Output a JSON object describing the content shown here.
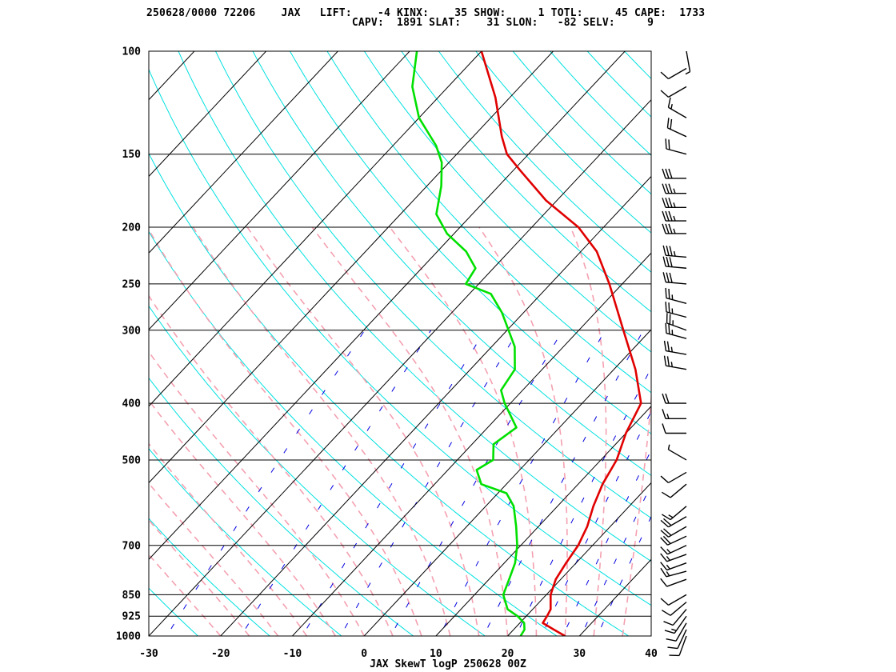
{
  "header": {
    "line1": "250628/0000 72206    JAX   LIFT:    -4 KINX:    35 SHOW:     1 TOTL:     45 CAPE:  1733",
    "line2": "                                CAPV:  1891 SLAT:    31 SLON:   -82 SELV:     9"
  },
  "chart_data": {
    "type": "line",
    "title": "JAX SkewT logP 250628 00Z",
    "xlabel": "",
    "ylabel": "",
    "xlim": [
      -30,
      40
    ],
    "ylim": [
      1000,
      100
    ],
    "y_scale": "log",
    "grid": true,
    "x_ticks": [
      "-30",
      "-20",
      "-10",
      "0",
      "10",
      "20",
      "30",
      "40"
    ],
    "y_ticks": [
      "100",
      "150",
      "200",
      "250",
      "300",
      "400",
      "500",
      "700",
      "850",
      "925",
      "1000"
    ],
    "series": [
      {
        "color": "#e00000",
        "points": [
          [
            1000,
            28
          ],
          [
            975,
            25.6
          ],
          [
            950,
            23.2
          ],
          [
            925,
            22.9
          ],
          [
            900,
            22.5
          ],
          [
            850,
            20.6
          ],
          [
            800,
            19.3
          ],
          [
            750,
            18.6
          ],
          [
            700,
            18
          ],
          [
            650,
            16.8
          ],
          [
            600,
            15
          ],
          [
            550,
            13.4
          ],
          [
            500,
            12.2
          ],
          [
            450,
            10
          ],
          [
            400,
            8.2
          ],
          [
            350,
            3
          ],
          [
            300,
            -3.8
          ],
          [
            250,
            -11.8
          ],
          [
            220,
            -17.8
          ],
          [
            200,
            -23.5
          ],
          [
            180,
            -31.5
          ],
          [
            160,
            -39
          ],
          [
            150,
            -43
          ],
          [
            140,
            -46
          ],
          [
            120,
            -52
          ],
          [
            100,
            -60
          ]
        ]
      },
      {
        "color": "#00e000",
        "points": [
          [
            1000,
            21.8
          ],
          [
            975,
            21.5
          ],
          [
            950,
            20.6
          ],
          [
            925,
            18.8
          ],
          [
            900,
            16.5
          ],
          [
            850,
            14
          ],
          [
            800,
            12.8
          ],
          [
            750,
            11.5
          ],
          [
            700,
            9.5
          ],
          [
            650,
            6.9
          ],
          [
            600,
            3.9
          ],
          [
            570,
            1.2
          ],
          [
            550,
            -3.5
          ],
          [
            520,
            -6
          ],
          [
            500,
            -5
          ],
          [
            470,
            -7
          ],
          [
            440,
            -6
          ],
          [
            400,
            -10.8
          ],
          [
            380,
            -13
          ],
          [
            350,
            -13.8
          ],
          [
            320,
            -16.8
          ],
          [
            300,
            -19.8
          ],
          [
            280,
            -23
          ],
          [
            260,
            -27
          ],
          [
            250,
            -31.8
          ],
          [
            235,
            -32.5
          ],
          [
            220,
            -36
          ],
          [
            205,
            -41
          ],
          [
            190,
            -45
          ],
          [
            170,
            -48
          ],
          [
            155,
            -51
          ],
          [
            145,
            -54
          ],
          [
            130,
            -60
          ],
          [
            115,
            -65
          ],
          [
            100,
            -69
          ]
        ]
      }
    ],
    "wind_barbs": [
      {
        "p": 1000,
        "dir": 200,
        "kt": 10
      },
      {
        "p": 975,
        "dir": 205,
        "kt": 12
      },
      {
        "p": 950,
        "dir": 210,
        "kt": 10
      },
      {
        "p": 925,
        "dir": 215,
        "kt": 15
      },
      {
        "p": 900,
        "dir": 220,
        "kt": 12
      },
      {
        "p": 875,
        "dir": 230,
        "kt": 10
      },
      {
        "p": 850,
        "dir": 240,
        "kt": 10
      },
      {
        "p": 800,
        "dir": 250,
        "kt": 10
      },
      {
        "p": 775,
        "dir": 255,
        "kt": 15
      },
      {
        "p": 750,
        "dir": 250,
        "kt": 15
      },
      {
        "p": 725,
        "dir": 250,
        "kt": 15
      },
      {
        "p": 700,
        "dir": 245,
        "kt": 15
      },
      {
        "p": 675,
        "dir": 245,
        "kt": 20
      },
      {
        "p": 650,
        "dir": 240,
        "kt": 20
      },
      {
        "p": 625,
        "dir": 240,
        "kt": 20
      },
      {
        "p": 600,
        "dir": 230,
        "kt": 15
      },
      {
        "p": 550,
        "dir": 230,
        "kt": 10
      },
      {
        "p": 525,
        "dir": 240,
        "kt": 10
      },
      {
        "p": 500,
        "dir": 300,
        "kt": 5
      },
      {
        "p": 450,
        "dir": 270,
        "kt": 10
      },
      {
        "p": 425,
        "dir": 270,
        "kt": 15
      },
      {
        "p": 400,
        "dir": 270,
        "kt": 20
      },
      {
        "p": 350,
        "dir": 280,
        "kt": 25
      },
      {
        "p": 330,
        "dir": 280,
        "kt": 25
      },
      {
        "p": 310,
        "dir": 285,
        "kt": 25
      },
      {
        "p": 300,
        "dir": 290,
        "kt": 25
      },
      {
        "p": 285,
        "dir": 285,
        "kt": 25
      },
      {
        "p": 270,
        "dir": 285,
        "kt": 25
      },
      {
        "p": 250,
        "dir": 275,
        "kt": 30
      },
      {
        "p": 235,
        "dir": 275,
        "kt": 30
      },
      {
        "p": 225,
        "dir": 275,
        "kt": 35
      },
      {
        "p": 205,
        "dir": 270,
        "kt": 35
      },
      {
        "p": 195,
        "dir": 270,
        "kt": 35
      },
      {
        "p": 185,
        "dir": 270,
        "kt": 35
      },
      {
        "p": 175,
        "dir": 270,
        "kt": 35
      },
      {
        "p": 165,
        "dir": 270,
        "kt": 30
      },
      {
        "p": 150,
        "dir": 285,
        "kt": 20
      },
      {
        "p": 140,
        "dir": 295,
        "kt": 20
      },
      {
        "p": 130,
        "dir": 300,
        "kt": 15
      },
      {
        "p": 115,
        "dir": 240,
        "kt": 10
      },
      {
        "p": 107,
        "dir": 240,
        "kt": 10
      },
      {
        "p": 100,
        "dir": 170,
        "kt": 5
      }
    ],
    "colors": {
      "isotherm": "#000000",
      "dry_adiabat": "#00e0e0",
      "moist_adiabat": "#f4a0b0",
      "mixing_ratio": "#0000e0",
      "temperature": "#e00000",
      "dewpoint": "#00e000"
    }
  }
}
